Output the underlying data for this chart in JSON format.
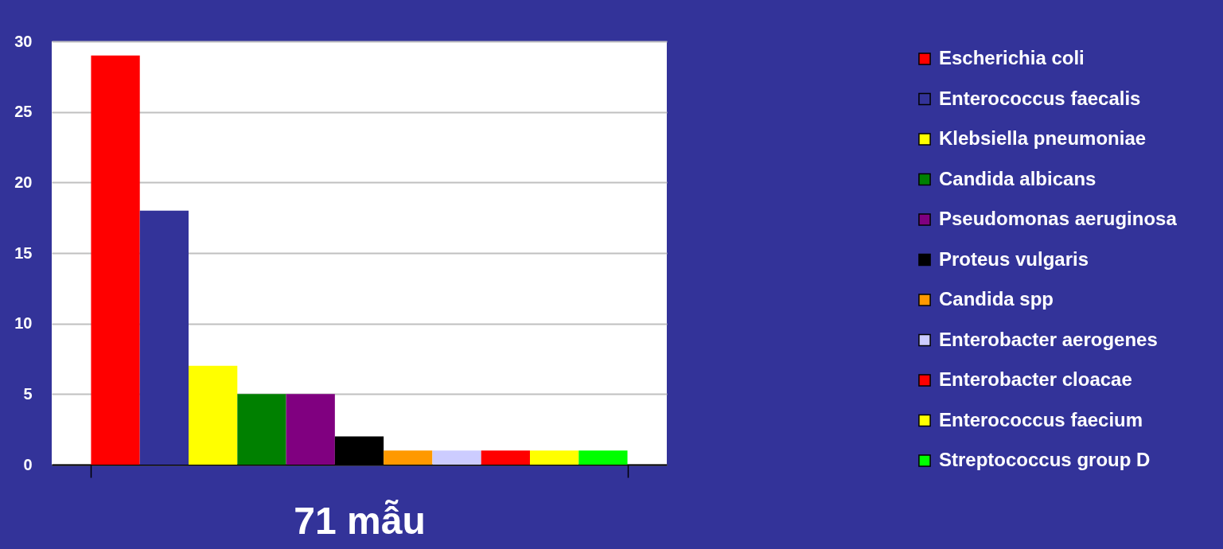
{
  "chart_data": {
    "type": "bar",
    "categories": [
      "71 mẫu"
    ],
    "series": [
      {
        "name": "Escherichia coli",
        "color": "#ff0000",
        "values": [
          29
        ]
      },
      {
        "name": "Enterococcus faecalis",
        "color": "#333399",
        "values": [
          18
        ]
      },
      {
        "name": "Klebsiella pneumoniae",
        "color": "#ffff00",
        "values": [
          7
        ]
      },
      {
        "name": "Candida albicans",
        "color": "#008000",
        "values": [
          5
        ]
      },
      {
        "name": "Pseudomonas aeruginosa",
        "color": "#800080",
        "values": [
          5
        ]
      },
      {
        "name": "Proteus vulgaris",
        "color": "#000000",
        "values": [
          2
        ]
      },
      {
        "name": "Candida spp",
        "color": "#ff9900",
        "values": [
          1
        ]
      },
      {
        "name": "Enterobacter aerogenes",
        "color": "#ccccff",
        "values": [
          1
        ]
      },
      {
        "name": "Enterobacter cloacae",
        "color": "#ff0000",
        "values": [
          1
        ]
      },
      {
        "name": "Enterococcus faecium",
        "color": "#ffff00",
        "values": [
          1
        ]
      },
      {
        "name": "Streptococcus group D",
        "color": "#00ff00",
        "values": [
          1
        ]
      }
    ],
    "ylim": [
      0,
      30
    ],
    "yticks": [
      0,
      5,
      10,
      15,
      20,
      25,
      30
    ],
    "grid": "y",
    "legend": "right"
  }
}
